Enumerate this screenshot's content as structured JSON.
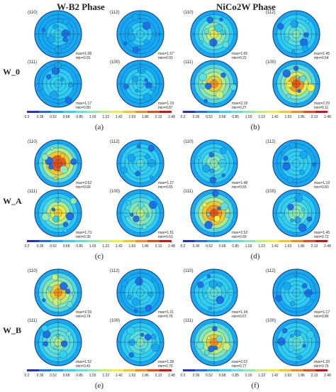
{
  "headers": {
    "left": "W-B2 Phase",
    "right": "NiCo2W Phase"
  },
  "rows": [
    {
      "label": "W_0"
    },
    {
      "label": "W_A"
    },
    {
      "label": "W_B"
    }
  ],
  "colorbar_ticks": [
    "0.2",
    "0.36",
    "0.52",
    "0.68",
    "0.85",
    "1.03",
    "1.22",
    "1.42",
    "1.63",
    "1.86",
    "2.13",
    "2.48"
  ],
  "colorbar_colors": [
    "#2432c8",
    "#1f6fe6",
    "#16a8f0",
    "#33d0f0",
    "#60e0d8",
    "#8fe9b0",
    "#c4ef78",
    "#f1ee40",
    "#fbc423",
    "#f58a1b",
    "#e84b16",
    "#c8141a"
  ],
  "panels": [
    {
      "caption": "(a)",
      "plots": [
        {
          "plane": "(110)",
          "max": "max=1.08",
          "min": "min=0.91",
          "level": 0.05
        },
        {
          "plane": "(112)",
          "max": "max=1.07",
          "min": "min=0.93",
          "level": 0.05
        },
        {
          "plane": "(111)",
          "max": "max=1.17",
          "min": "min=0.80",
          "level": 0.07
        },
        {
          "plane": "(100)",
          "max": "max=1.19",
          "min": "min=0.87",
          "level": 0.07
        }
      ]
    },
    {
      "caption": "(b)",
      "plots": [
        {
          "plane": "(110)",
          "max": "max=1.65",
          "min": "min=0.22",
          "level": 0.45
        },
        {
          "plane": "(112)",
          "max": "max=1.45",
          "min": "min=0.54",
          "level": 0.25
        },
        {
          "plane": "(111)",
          "max": "max=2.18",
          "min": "min=0.27",
          "level": 0.7
        },
        {
          "plane": "(100)",
          "max": "max=2.29",
          "min": "min=0.11",
          "level": 0.8
        }
      ]
    },
    {
      "caption": "(c)",
      "plots": [
        {
          "plane": "(110)",
          "max": "max=2.62",
          "min": "min=0.66",
          "level": 0.95
        },
        {
          "plane": "(112)",
          "max": "max=1.27",
          "min": "min=0.65",
          "level": 0.15
        },
        {
          "plane": "(111)",
          "max": "max=1.73",
          "min": "min=0.30",
          "level": 0.55
        },
        {
          "plane": "(100)",
          "max": "max=1.51",
          "min": "min=0.63",
          "level": 0.4
        }
      ]
    },
    {
      "caption": "(d)",
      "plots": [
        {
          "plane": "(110)",
          "max": "max=1.48",
          "min": "min=0.55",
          "level": 0.3
        },
        {
          "plane": "(112)",
          "max": "max=1.19",
          "min": "min=0.83",
          "level": 0.1
        },
        {
          "plane": "(111)",
          "max": "max=2.52",
          "min": "min=0.69",
          "level": 0.9
        },
        {
          "plane": "(100)",
          "max": "max=1.45",
          "min": "min=0.72",
          "level": 0.3
        }
      ]
    },
    {
      "caption": "(e)",
      "plots": [
        {
          "plane": "(110)",
          "max": "max=2.09",
          "min": "min=0.74",
          "level": 0.7
        },
        {
          "plane": "(112)",
          "max": "max=1.21",
          "min": "min=0.76",
          "level": 0.12
        },
        {
          "plane": "(111)",
          "max": "max=1.52",
          "min": "min=0.41",
          "level": 0.35
        },
        {
          "plane": "(100)",
          "max": "max=1.38",
          "min": "min=0.75",
          "level": 0.25
        }
      ]
    },
    {
      "caption": "(f)",
      "plots": [
        {
          "plane": "(110)",
          "max": "max=1.34",
          "min": "min=0.67",
          "level": 0.2
        },
        {
          "plane": "(112)",
          "max": "max=1.17",
          "min": "min=0.86",
          "level": 0.1
        },
        {
          "plane": "(111)",
          "max": "max=2.02",
          "min": "min=0.77",
          "level": 0.7
        },
        {
          "plane": "(100)",
          "max": "max=1.33",
          "min": "min=0.76",
          "level": 0.2
        }
      ]
    }
  ]
}
